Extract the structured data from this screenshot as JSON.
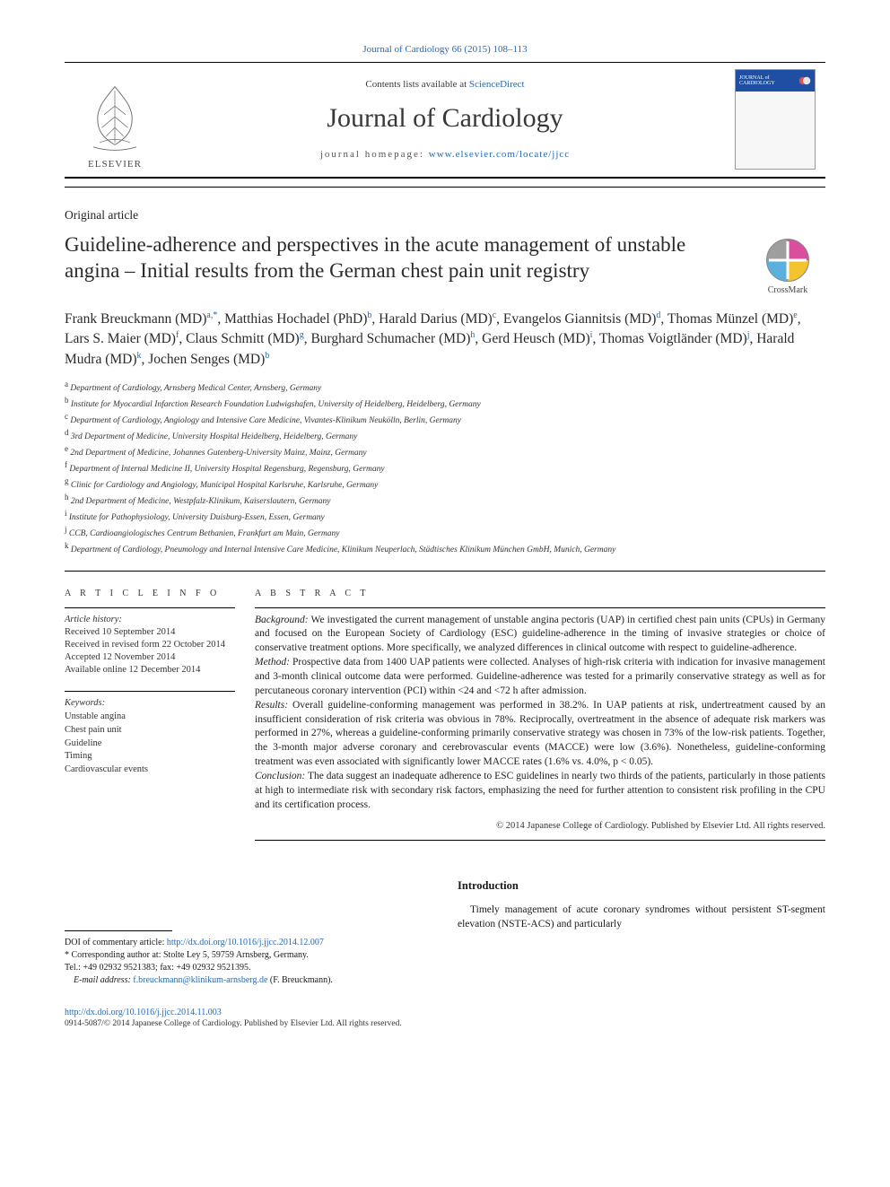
{
  "journal_ref": {
    "journal": "Journal of Cardiology",
    "citation": "66 (2015) 108–113",
    "full": "Journal of Cardiology 66 (2015) 108–113"
  },
  "header": {
    "publisher_name": "ELSEVIER",
    "sciencedirect_prefix": "Contents lists available at ",
    "sciencedirect": "ScienceDirect",
    "journal_title": "Journal of Cardiology",
    "homepage_label": "journal homepage: ",
    "homepage_url": "www.elsevier.com/locate/jjcc",
    "cover_title_1": "JOURNAL of",
    "cover_title_2": "CARDIOLOGY"
  },
  "article": {
    "type": "Original article",
    "title": "Guideline-adherence and perspectives in the acute management of unstable angina – Initial results from the German chest pain unit registry",
    "crossmark_label": "CrossMark"
  },
  "authors_html_parts": [
    {
      "name": "Frank Breuckmann",
      "deg": "(MD)",
      "sup": "a,*"
    },
    {
      "name": "Matthias Hochadel",
      "deg": "(PhD)",
      "sup": "b"
    },
    {
      "name": "Harald Darius",
      "deg": "(MD)",
      "sup": "c"
    },
    {
      "name": "Evangelos Giannitsis",
      "deg": "(MD)",
      "sup": "d"
    },
    {
      "name": "Thomas Münzel",
      "deg": "(MD)",
      "sup": "e"
    },
    {
      "name": "Lars S. Maier",
      "deg": "(MD)",
      "sup": "f"
    },
    {
      "name": "Claus Schmitt",
      "deg": "(MD)",
      "sup": "g"
    },
    {
      "name": "Burghard Schumacher",
      "deg": "(MD)",
      "sup": "h"
    },
    {
      "name": "Gerd Heusch",
      "deg": "(MD)",
      "sup": "i"
    },
    {
      "name": "Thomas Voigtländer",
      "deg": "(MD)",
      "sup": "j"
    },
    {
      "name": "Harald Mudra",
      "deg": "(MD)",
      "sup": "k"
    },
    {
      "name": "Jochen Senges",
      "deg": "(MD)",
      "sup": "b"
    }
  ],
  "affiliations": [
    {
      "key": "a",
      "text": "Department of Cardiology, Arnsberg Medical Center, Arnsberg, Germany"
    },
    {
      "key": "b",
      "text": "Institute for Myocardial Infarction Research Foundation Ludwigshafen, University of Heidelberg, Heidelberg, Germany"
    },
    {
      "key": "c",
      "text": "Department of Cardiology, Angiology and Intensive Care Medicine, Vivantes-Klinikum Neukölln, Berlin, Germany"
    },
    {
      "key": "d",
      "text": "3rd Department of Medicine, University Hospital Heidelberg, Heidelberg, Germany"
    },
    {
      "key": "e",
      "text": "2nd Department of Medicine, Johannes Gutenberg-University Mainz, Mainz, Germany"
    },
    {
      "key": "f",
      "text": "Department of Internal Medicine II, University Hospital Regensburg, Regensburg, Germany"
    },
    {
      "key": "g",
      "text": "Clinic for Cardiology and Angiology, Municipal Hospital Karlsruhe, Karlsruhe, Germany"
    },
    {
      "key": "h",
      "text": "2nd Department of Medicine, Westpfalz-Klinikum, Kaiserslautern, Germany"
    },
    {
      "key": "i",
      "text": "Institute for Pathophysiology, University Duisburg-Essen, Essen, Germany"
    },
    {
      "key": "j",
      "text": "CCB, Cardioangiologisches Centrum Bethanien, Frankfurt am Main, Germany"
    },
    {
      "key": "k",
      "text": "Department of Cardiology, Pneumology and Internal Intensive Care Medicine, Klinikum Neuperlach, Städtisches Klinikum München GmbH, Munich, Germany"
    }
  ],
  "article_info": {
    "heading": "A R T I C L E   I N F O",
    "history_label": "Article history:",
    "history": [
      "Received 10 September 2014",
      "Received in revised form 22 October 2014",
      "Accepted 12 November 2014",
      "Available online 12 December 2014"
    ],
    "keywords_label": "Keywords:",
    "keywords": [
      "Unstable angina",
      "Chest pain unit",
      "Guideline",
      "Timing",
      "Cardiovascular events"
    ]
  },
  "abstract": {
    "heading": "A B S T R A C T",
    "segments": [
      {
        "label": "Background:",
        "text": " We investigated the current management of unstable angina pectoris (UAP) in certified chest pain units (CPUs) in Germany and focused on the European Society of Cardiology (ESC) guideline-adherence in the timing of invasive strategies or choice of conservative treatment options. More specifically, we analyzed differences in clinical outcome with respect to guideline-adherence."
      },
      {
        "label": "Method:",
        "text": " Prospective data from 1400 UAP patients were collected. Analyses of high-risk criteria with indication for invasive management and 3-month clinical outcome data were performed. Guideline-adherence was tested for a primarily conservative strategy as well as for percutaneous coronary intervention (PCI) within <24 and <72 h after admission."
      },
      {
        "label": "Results:",
        "text": " Overall guideline-conforming management was performed in 38.2%. In UAP patients at risk, undertreatment caused by an insufficient consideration of risk criteria was obvious in 78%. Reciprocally, overtreatment in the absence of adequate risk markers was performed in 27%, whereas a guideline-conforming primarily conservative strategy was chosen in 73% of the low-risk patients. Together, the 3-month major adverse coronary and cerebrovascular events (MACCE) were low (3.6%). Nonetheless, guideline-conforming treatment was even associated with significantly lower MACCE rates (1.6% vs. 4.0%, p < 0.05)."
      },
      {
        "label": "Conclusion:",
        "text": " The data suggest an inadequate adherence to ESC guidelines in nearly two thirds of the patients, particularly in those patients at high to intermediate risk with secondary risk factors, emphasizing the need for further attention to consistent risk profiling in the CPU and its certification process."
      }
    ],
    "copyright": "© 2014 Japanese College of Cardiology. Published by Elsevier Ltd. All rights reserved."
  },
  "footnotes": {
    "doi_commentary_label": "DOI of commentary article: ",
    "doi_commentary_url": "http://dx.doi.org/10.1016/j.jjcc.2014.12.007",
    "corr_label": "* Corresponding author at: ",
    "corr_addr": "Stolte Ley 5, 59759 Arnsberg, Germany.",
    "tel": "Tel.: +49 02932 9521383; fax: +49 02932 9521395.",
    "email_label": "E-mail address: ",
    "email": "f.breuckmann@klinikum-arnsberg.de",
    "email_paren": " (F. Breuckmann)."
  },
  "intro": {
    "heading": "Introduction",
    "p1": "Timely management of acute coronary syndromes without persistent ST-segment elevation (NSTE-ACS) and particularly"
  },
  "doi_block": {
    "doi_url": "http://dx.doi.org/10.1016/j.jjcc.2014.11.003",
    "issn_line": "0914-5087/© 2014 Japanese College of Cardiology. Published by Elsevier Ltd. All rights reserved."
  },
  "colors": {
    "link": "#2968b0",
    "text": "#1a1a1a",
    "cover_band": "#1e4fa3"
  }
}
